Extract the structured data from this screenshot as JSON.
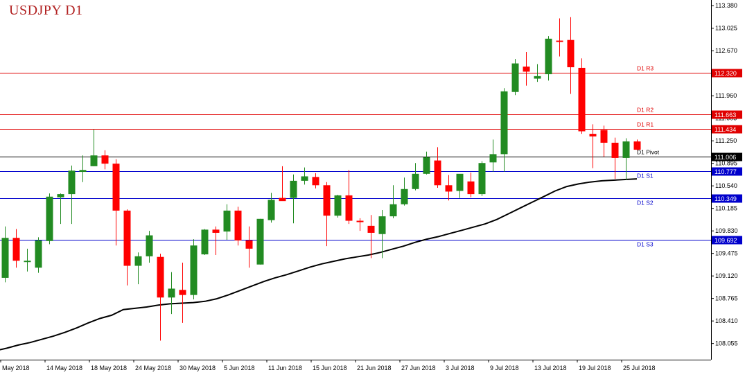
{
  "chart_data": {
    "type": "candlestick",
    "title": "USDJPY D1",
    "colors": {
      "up": "#228b22",
      "down": "#ff0000",
      "resistance": "#e00000",
      "support": "#0000cc",
      "pivot": "#000000",
      "ma": "#000000",
      "axis": "#000000"
    },
    "y_axis": {
      "ylim": [
        107.8,
        113.47
      ],
      "tick_labels": [
        "113.380",
        "113.025",
        "112.670",
        "112.315",
        "111.960",
        "111.605",
        "111.250",
        "110.895",
        "110.540",
        "110.185",
        "109.830",
        "109.475",
        "109.120",
        "108.765",
        "108.410",
        "108.055"
      ]
    },
    "x_axis": {
      "tick_labels": [
        "May 2018",
        "14 May 2018",
        "18 May 2018",
        "24 May 2018",
        "30 May 2018",
        "5 Jun 2018",
        "11 Jun 2018",
        "15 Jun 2018",
        "21 Jun 2018",
        "27 Jun 2018",
        "3 Jul 2018",
        "9 Jul 2018",
        "13 Jul 2018",
        "19 Jul 2018",
        "25 Jul 2018"
      ],
      "tick_indices": [
        0,
        4,
        8,
        12,
        16,
        20,
        24,
        28,
        32,
        36,
        40,
        44,
        48,
        52,
        56
      ]
    },
    "levels": [
      {
        "name": "D1 R3",
        "value": 112.32,
        "label": "112.320",
        "kind": "resistance"
      },
      {
        "name": "D1 R2",
        "value": 111.663,
        "label": "111.663",
        "kind": "resistance"
      },
      {
        "name": "D1 R1",
        "value": 111.434,
        "label": "111.434",
        "kind": "resistance"
      },
      {
        "name": "D1 Pivot",
        "value": 111.006,
        "label": "111.006",
        "kind": "pivot"
      },
      {
        "name": "D1 S1",
        "value": 110.777,
        "label": "110.777",
        "kind": "support"
      },
      {
        "name": "D1 S2",
        "value": 110.349,
        "label": "110.349",
        "kind": "support"
      },
      {
        "name": "D1 S3",
        "value": 109.692,
        "label": "109.692",
        "kind": "support"
      }
    ],
    "candles": [
      {
        "o": 109.09,
        "h": 109.9,
        "l": 109.02,
        "c": 109.72
      },
      {
        "o": 109.72,
        "h": 109.86,
        "l": 109.25,
        "c": 109.36
      },
      {
        "o": 109.36,
        "h": 109.55,
        "l": 109.19,
        "c": 109.36
      },
      {
        "o": 109.25,
        "h": 109.73,
        "l": 109.17,
        "c": 109.68
      },
      {
        "o": 109.67,
        "h": 110.42,
        "l": 109.62,
        "c": 110.37
      },
      {
        "o": 110.36,
        "h": 110.42,
        "l": 109.94,
        "c": 110.41
      },
      {
        "o": 110.41,
        "h": 110.86,
        "l": 109.94,
        "c": 110.78
      },
      {
        "o": 110.76,
        "h": 111.02,
        "l": 110.6,
        "c": 110.79
      },
      {
        "o": 110.85,
        "h": 111.43,
        "l": 110.85,
        "c": 111.02
      },
      {
        "o": 111.02,
        "h": 111.1,
        "l": 110.8,
        "c": 110.89
      },
      {
        "o": 110.89,
        "h": 110.96,
        "l": 109.6,
        "c": 110.15
      },
      {
        "o": 110.15,
        "h": 110.17,
        "l": 108.97,
        "c": 109.28
      },
      {
        "o": 109.28,
        "h": 109.49,
        "l": 108.99,
        "c": 109.43
      },
      {
        "o": 109.43,
        "h": 109.83,
        "l": 109.33,
        "c": 109.76
      },
      {
        "o": 109.42,
        "h": 109.47,
        "l": 108.1,
        "c": 108.78
      },
      {
        "o": 108.78,
        "h": 109.18,
        "l": 108.52,
        "c": 108.92
      },
      {
        "o": 108.9,
        "h": 109.33,
        "l": 108.38,
        "c": 108.82
      },
      {
        "o": 108.82,
        "h": 109.7,
        "l": 108.75,
        "c": 109.6
      },
      {
        "o": 109.46,
        "h": 109.86,
        "l": 109.45,
        "c": 109.85
      },
      {
        "o": 109.85,
        "h": 109.9,
        "l": 109.45,
        "c": 109.8
      },
      {
        "o": 109.82,
        "h": 110.25,
        "l": 109.69,
        "c": 110.15
      },
      {
        "o": 110.15,
        "h": 110.21,
        "l": 109.6,
        "c": 109.68
      },
      {
        "o": 109.68,
        "h": 109.9,
        "l": 109.25,
        "c": 109.55
      },
      {
        "o": 109.3,
        "h": 110.02,
        "l": 109.3,
        "c": 110.02
      },
      {
        "o": 110.0,
        "h": 110.43,
        "l": 109.96,
        "c": 110.32
      },
      {
        "o": 110.35,
        "h": 110.85,
        "l": 110.31,
        "c": 110.3
      },
      {
        "o": 110.35,
        "h": 110.72,
        "l": 109.95,
        "c": 110.62
      },
      {
        "o": 110.62,
        "h": 110.83,
        "l": 110.56,
        "c": 110.69
      },
      {
        "o": 110.68,
        "h": 110.74,
        "l": 110.5,
        "c": 110.55
      },
      {
        "o": 110.55,
        "h": 110.6,
        "l": 109.59,
        "c": 110.07
      },
      {
        "o": 110.07,
        "h": 110.4,
        "l": 110.04,
        "c": 110.39
      },
      {
        "o": 110.39,
        "h": 110.79,
        "l": 109.94,
        "c": 109.99
      },
      {
        "o": 109.99,
        "h": 110.03,
        "l": 109.83,
        "c": 109.98
      },
      {
        "o": 109.91,
        "h": 110.08,
        "l": 109.4,
        "c": 109.8
      },
      {
        "o": 109.78,
        "h": 110.16,
        "l": 109.4,
        "c": 110.06
      },
      {
        "o": 110.06,
        "h": 110.55,
        "l": 110.03,
        "c": 110.25
      },
      {
        "o": 110.25,
        "h": 110.67,
        "l": 110.23,
        "c": 110.49
      },
      {
        "o": 110.49,
        "h": 110.9,
        "l": 110.47,
        "c": 110.73
      },
      {
        "o": 110.73,
        "h": 111.08,
        "l": 110.72,
        "c": 110.99
      },
      {
        "o": 110.94,
        "h": 111.15,
        "l": 110.51,
        "c": 110.55
      },
      {
        "o": 110.55,
        "h": 110.71,
        "l": 110.31,
        "c": 110.45
      },
      {
        "o": 110.46,
        "h": 110.72,
        "l": 110.35,
        "c": 110.73
      },
      {
        "o": 110.61,
        "h": 110.75,
        "l": 110.36,
        "c": 110.41
      },
      {
        "o": 110.41,
        "h": 110.93,
        "l": 110.38,
        "c": 110.9
      },
      {
        "o": 110.91,
        "h": 111.27,
        "l": 110.76,
        "c": 111.04
      },
      {
        "o": 111.04,
        "h": 112.08,
        "l": 110.76,
        "c": 112.03
      },
      {
        "o": 112.02,
        "h": 112.54,
        "l": 111.97,
        "c": 112.47
      },
      {
        "o": 112.42,
        "h": 112.65,
        "l": 112.12,
        "c": 112.34
      },
      {
        "o": 112.23,
        "h": 112.46,
        "l": 112.18,
        "c": 112.27
      },
      {
        "o": 112.3,
        "h": 112.9,
        "l": 112.2,
        "c": 112.86
      },
      {
        "o": 112.83,
        "h": 113.18,
        "l": 112.58,
        "c": 112.81
      },
      {
        "o": 112.84,
        "h": 113.2,
        "l": 111.99,
        "c": 112.41
      },
      {
        "o": 112.4,
        "h": 112.55,
        "l": 111.36,
        "c": 111.4
      },
      {
        "o": 111.36,
        "h": 111.51,
        "l": 110.82,
        "c": 111.32
      },
      {
        "o": 111.42,
        "h": 111.49,
        "l": 111.0,
        "c": 111.22
      },
      {
        "o": 111.22,
        "h": 111.3,
        "l": 110.65,
        "c": 110.98
      },
      {
        "o": 110.98,
        "h": 111.29,
        "l": 110.63,
        "c": 111.24
      },
      {
        "o": 111.24,
        "h": 111.27,
        "l": 111.1,
        "c": 111.11
      }
    ],
    "ma": [
      107.88,
      107.91,
      107.94,
      107.98,
      108.03,
      108.07,
      108.12,
      108.17,
      108.23,
      108.3,
      108.38,
      108.45,
      108.5,
      108.59,
      108.61,
      108.63,
      108.66,
      108.68,
      108.69,
      108.7,
      108.72,
      108.76,
      108.82,
      108.89,
      108.96,
      109.03,
      109.09,
      109.14,
      109.2,
      109.26,
      109.31,
      109.35,
      109.39,
      109.42,
      109.45,
      109.49,
      109.54,
      109.59,
      109.65,
      109.7,
      109.74,
      109.79,
      109.84,
      109.89,
      109.94,
      110.01,
      110.1,
      110.19,
      110.28,
      110.37,
      110.46,
      110.53,
      110.57,
      110.6,
      110.62,
      110.63,
      110.64,
      110.65
    ],
    "ma_x_start": -3,
    "ma_x_end": 57
  }
}
